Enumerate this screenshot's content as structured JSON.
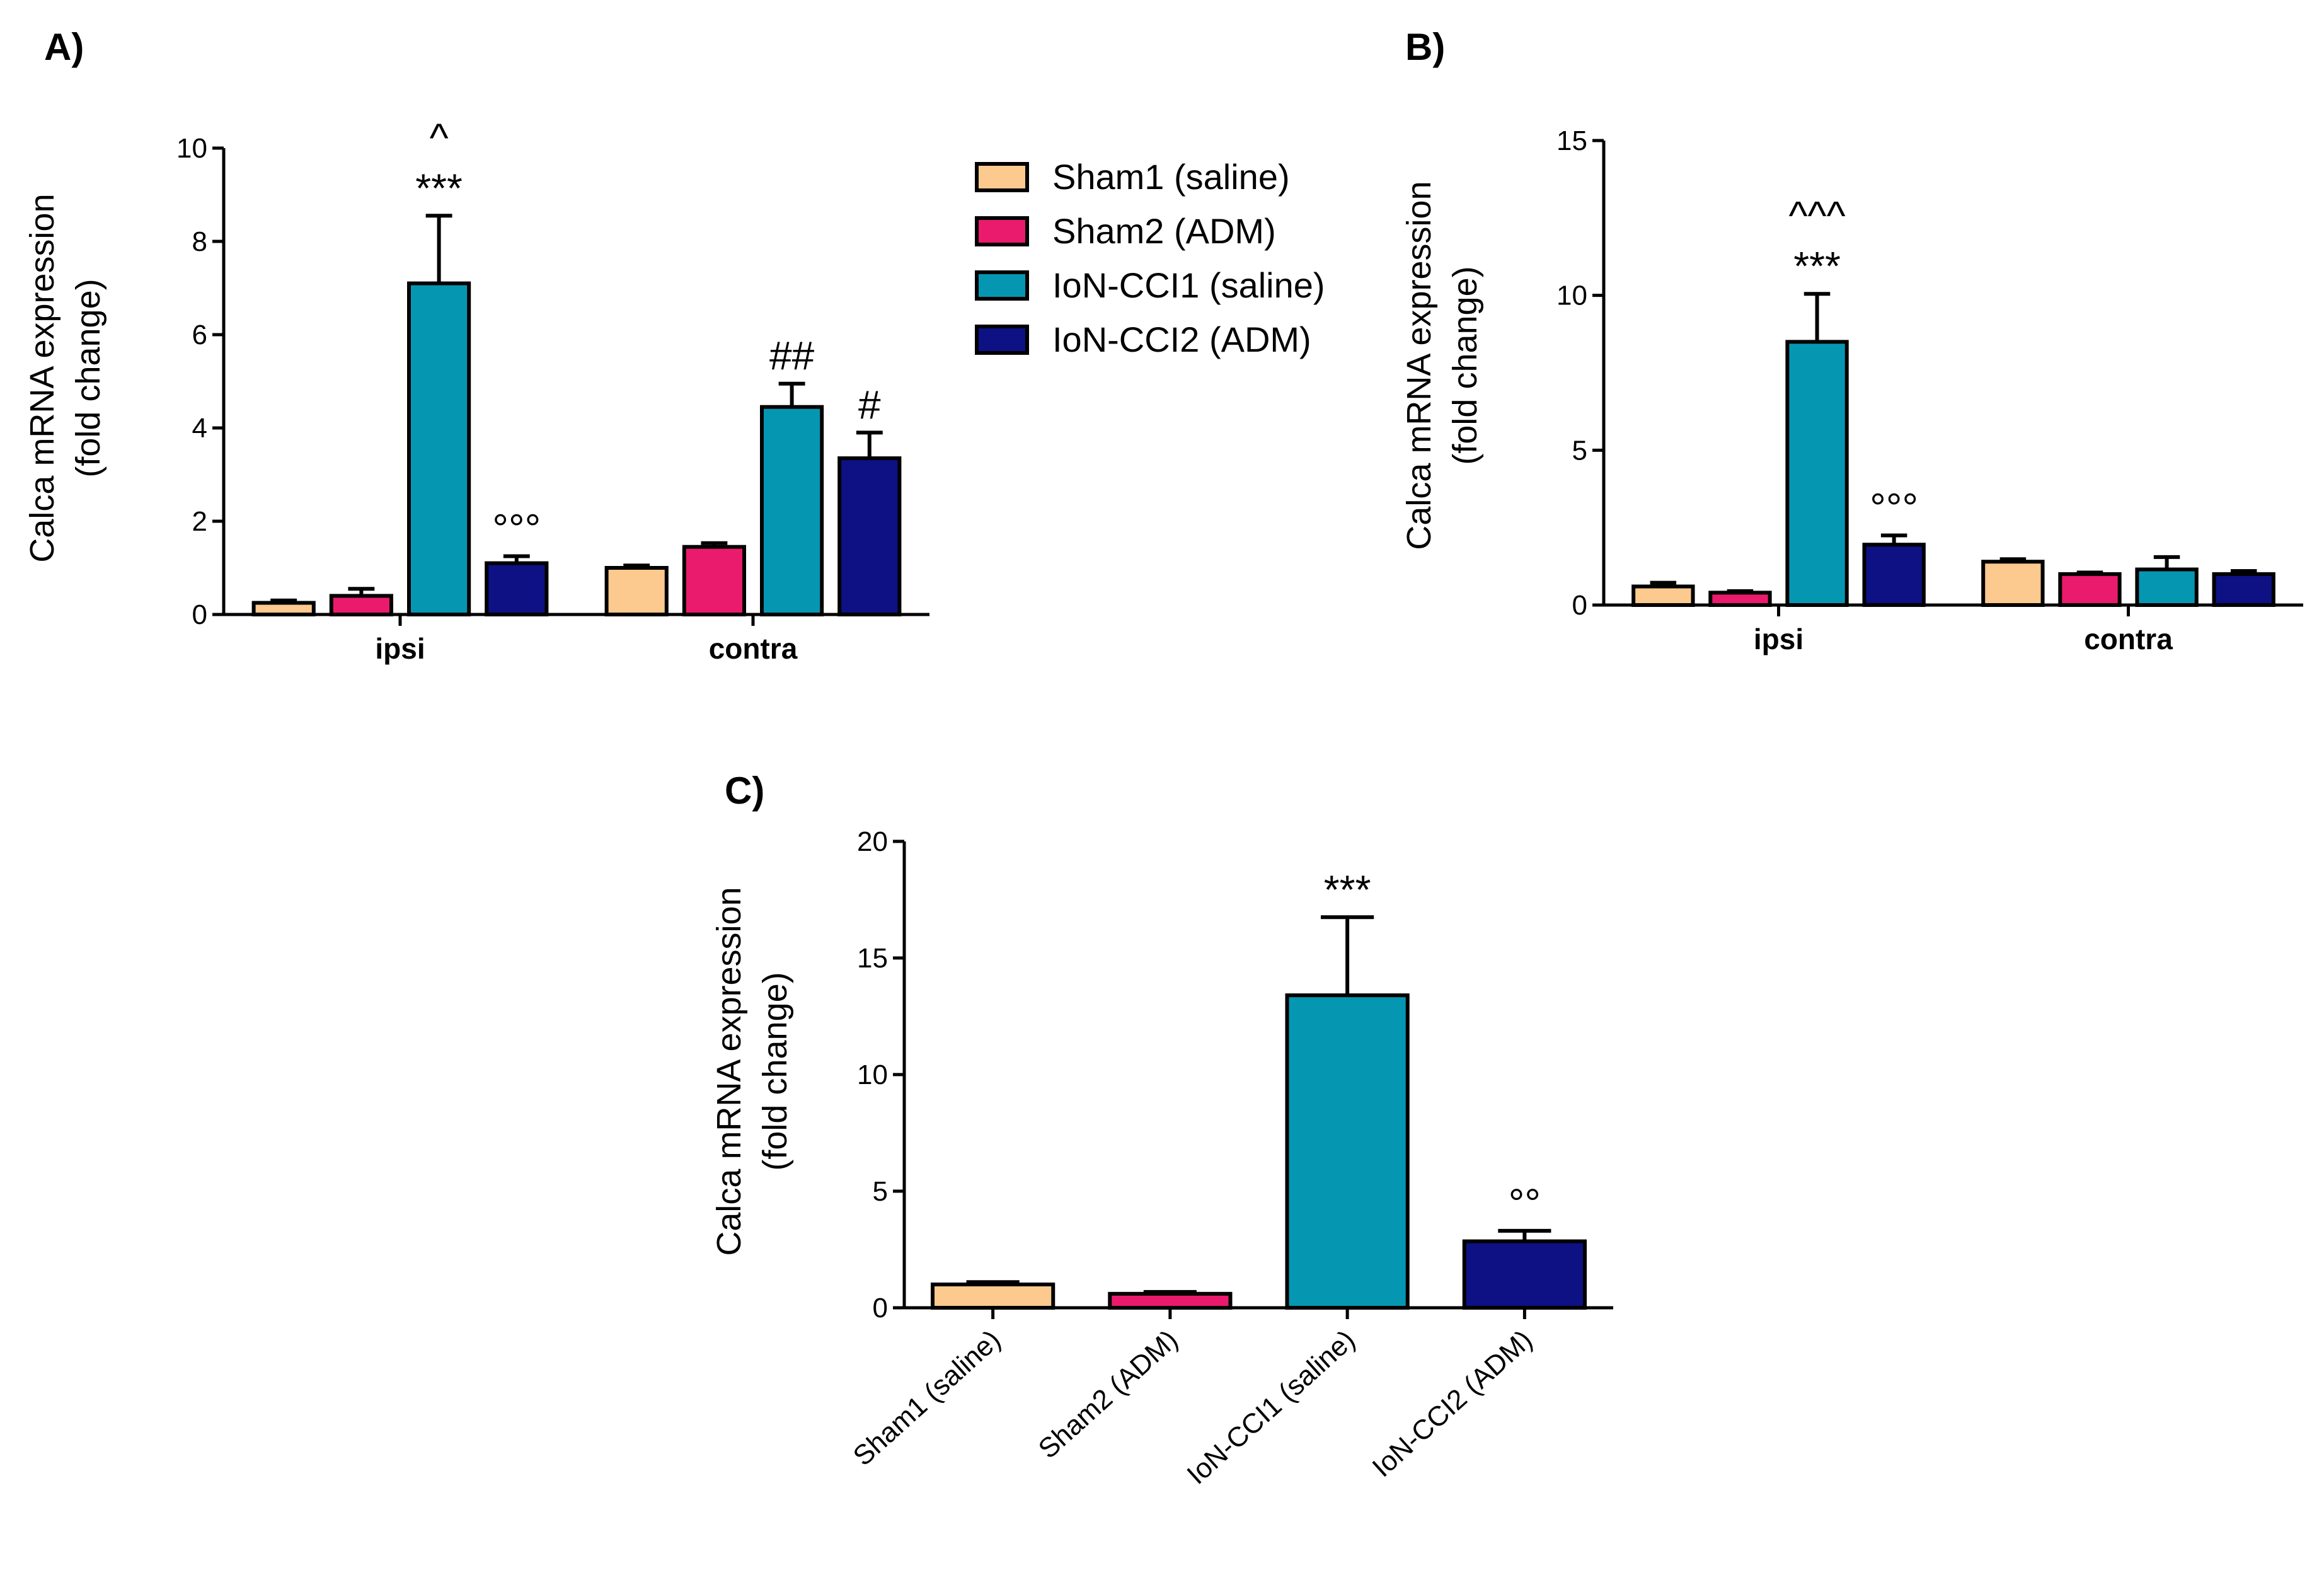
{
  "legend": [
    {
      "name": "Sham1 (saline)",
      "color": "#fcc98e"
    },
    {
      "name": "Sham2 (ADM)",
      "color": "#ea1b6c"
    },
    {
      "name": "IoN-CCI1 (saline)",
      "color": "#0597b2"
    },
    {
      "name": "IoN-CCI2 (ADM)",
      "color": "#0d1184"
    }
  ],
  "chart_data": [
    {
      "panel": "A)",
      "type": "bar",
      "ylabel": [
        "Calca mRNA expression",
        "(fold change)"
      ],
      "ylim": [
        0,
        10
      ],
      "yticks": [
        "0",
        "2",
        "4",
        "6",
        "8",
        "10"
      ],
      "groups": [
        "ipsi",
        "contra"
      ],
      "series": [
        {
          "name": "Sham1 (saline)",
          "color": "#fcc98e",
          "values": [
            0.25,
            1.0
          ],
          "errors": [
            0.05,
            0.05
          ]
        },
        {
          "name": "Sham2 (ADM)",
          "color": "#ea1b6c",
          "values": [
            0.4,
            1.45
          ],
          "errors": [
            0.15,
            0.08
          ]
        },
        {
          "name": "IoN-CCI1 (saline)",
          "color": "#0597b2",
          "values": [
            7.1,
            4.45
          ],
          "errors": [
            1.45,
            0.5
          ]
        },
        {
          "name": "IoN-CCI2 (ADM)",
          "color": "#0d1184",
          "values": [
            1.1,
            3.35
          ],
          "errors": [
            0.15,
            0.55
          ]
        }
      ],
      "annotations": [
        {
          "group": 0,
          "series": 2,
          "lines": [
            "^",
            "***"
          ]
        },
        {
          "group": 0,
          "series": 3,
          "lines": [
            "°°°"
          ]
        },
        {
          "group": 1,
          "series": 2,
          "lines": [
            "##"
          ]
        },
        {
          "group": 1,
          "series": 3,
          "lines": [
            "#"
          ]
        }
      ]
    },
    {
      "panel": "B)",
      "type": "bar",
      "ylabel": [
        "Calca mRNA expression",
        "(fold change)"
      ],
      "ylim": [
        0,
        15
      ],
      "yticks": [
        "0",
        "5",
        "10",
        "15"
      ],
      "groups": [
        "ipsi",
        "contra"
      ],
      "series": [
        {
          "name": "Sham1 (saline)",
          "color": "#fcc98e",
          "values": [
            0.6,
            1.4
          ],
          "errors": [
            0.12,
            0.08
          ]
        },
        {
          "name": "Sham2 (ADM)",
          "color": "#ea1b6c",
          "values": [
            0.4,
            1.0
          ],
          "errors": [
            0.05,
            0.05
          ]
        },
        {
          "name": "IoN-CCI1 (saline)",
          "color": "#0597b2",
          "values": [
            8.5,
            1.15
          ],
          "errors": [
            1.55,
            0.4
          ]
        },
        {
          "name": "IoN-CCI2 (ADM)",
          "color": "#0d1184",
          "values": [
            1.95,
            1.0
          ],
          "errors": [
            0.3,
            0.1
          ]
        }
      ],
      "annotations": [
        {
          "group": 0,
          "series": 2,
          "lines": [
            "^^^",
            "***"
          ]
        },
        {
          "group": 0,
          "series": 3,
          "lines": [
            "°°°"
          ]
        }
      ]
    },
    {
      "panel": "C)",
      "type": "bar",
      "ylabel": [
        "Calca mRNA expression",
        "(fold change)"
      ],
      "ylim": [
        0,
        20
      ],
      "yticks": [
        "0",
        "5",
        "10",
        "15",
        "20"
      ],
      "categories": [
        "Sham1 (saline)",
        "Sham2 (ADM)",
        "IoN-CCI1 (saline)",
        "IoN-CCI2 (ADM)"
      ],
      "colors": [
        "#fcc98e",
        "#ea1b6c",
        "#0597b2",
        "#0d1184"
      ],
      "values": [
        1.0,
        0.6,
        13.4,
        2.85
      ],
      "errors": [
        0.1,
        0.08,
        3.35,
        0.45
      ],
      "annotations": [
        {
          "index": 2,
          "lines": [
            "***"
          ]
        },
        {
          "index": 3,
          "lines": [
            "°°"
          ]
        }
      ]
    }
  ]
}
